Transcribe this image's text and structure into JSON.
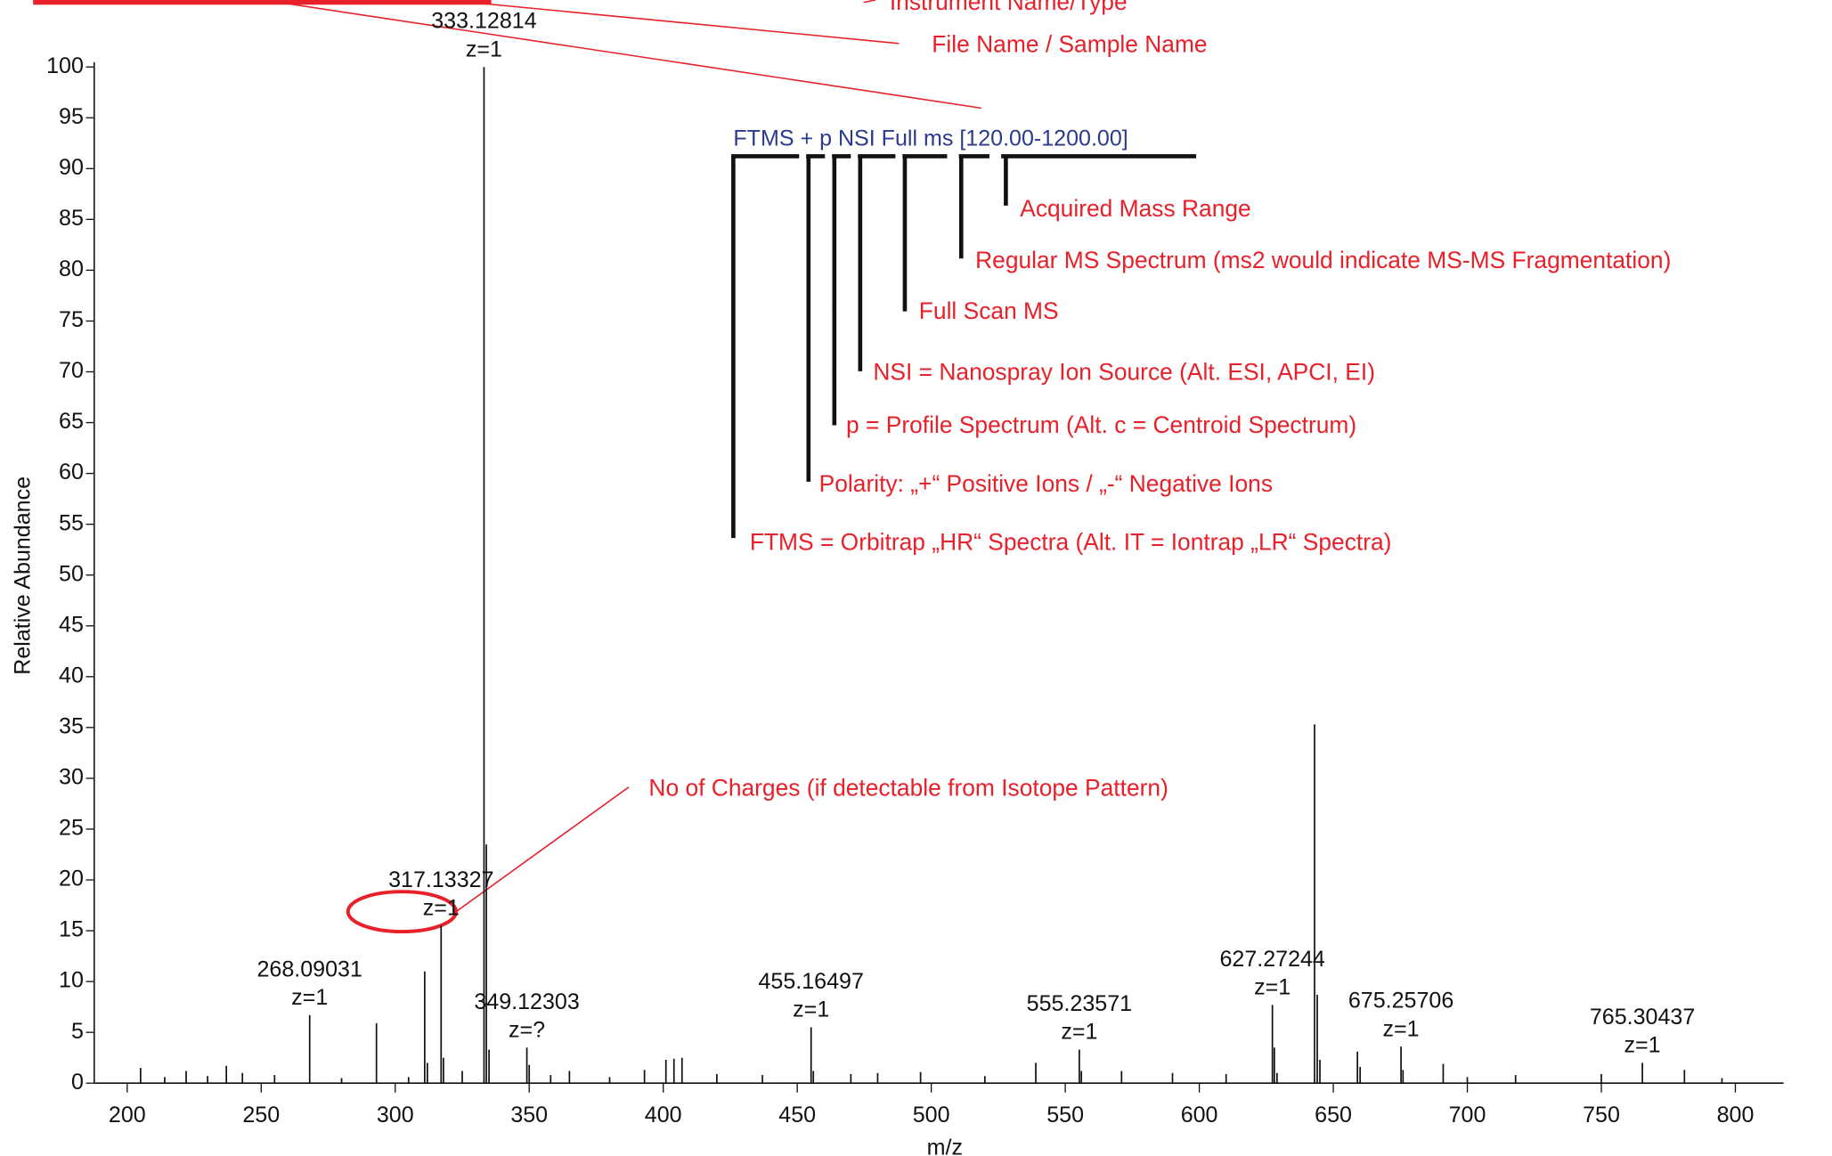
{
  "chart_data": {
    "type": "spectrum",
    "x_label": "m/z",
    "y_label": "Relative Abundance",
    "xlim": [
      187.7,
      818
    ],
    "xticks": [
      200,
      250,
      300,
      350,
      400,
      450,
      500,
      550,
      600,
      650,
      700,
      750,
      800
    ],
    "ylim": [
      0,
      100
    ],
    "yticks": [
      0,
      5,
      10,
      15,
      20,
      25,
      30,
      35,
      40,
      45,
      50,
      55,
      60,
      65,
      70,
      75,
      80,
      85,
      90,
      95,
      100
    ],
    "color": "#111111",
    "x": [
      205,
      214,
      222,
      230,
      237,
      243,
      255,
      268.09031,
      280,
      293,
      305,
      311,
      312,
      317.13327,
      318,
      325,
      333.12814,
      334,
      335,
      349.12303,
      350,
      358,
      365,
      380,
      393,
      401,
      404,
      407,
      420,
      437,
      455.16497,
      456,
      470,
      480,
      496,
      520,
      539,
      555.23571,
      556,
      571,
      590,
      610,
      627.27244,
      628,
      629,
      643,
      644,
      645,
      659,
      660,
      675.25706,
      676,
      691,
      700,
      718,
      750,
      765.30437,
      781,
      795
    ],
    "values": [
      1.5,
      0.6,
      1.2,
      0.7,
      1.7,
      1,
      0.8,
      6.7,
      0.5,
      5.9,
      0.6,
      11,
      2,
      15.5,
      2.5,
      1.2,
      100,
      23.5,
      3.3,
      3.5,
      1.8,
      0.8,
      1.2,
      0.6,
      1.3,
      2.3,
      2.4,
      2.5,
      0.9,
      0.8,
      5.5,
      1.2,
      0.9,
      1,
      1.1,
      0.7,
      2,
      3.3,
      1.2,
      1.2,
      1,
      0.9,
      7.7,
      3.5,
      1,
      35.3,
      8.7,
      2.3,
      3.1,
      1.6,
      3.6,
      1.3,
      1.9,
      0.6,
      0.8,
      0.9,
      2,
      1.3,
      0.5
    ],
    "peak_labels": [
      {
        "x": 268.09031,
        "charge": "z=1"
      },
      {
        "x": 317.13327,
        "charge": "z=1"
      },
      {
        "x": 333.12814,
        "charge": "z=1"
      },
      {
        "x": 349.12303,
        "charge": "z=?"
      },
      {
        "x": 455.16497,
        "charge": "z=1"
      },
      {
        "x": 555.23571,
        "charge": "z=1"
      },
      {
        "x": 627.27244,
        "charge": "z=1"
      },
      {
        "x": 675.25706,
        "charge": "z=1"
      },
      {
        "x": 765.30437,
        "charge": "z=1"
      }
    ],
    "scan_header": "FTMS + p NSI Full ms [120.00-1200.00]",
    "annotations": [
      "Instrument Name/Type",
      "File Name / Sample Name",
      "Acquired Mass Range",
      "Regular MS Spectrum (ms2 would indicate MS-MS Fragmentation)",
      "Full Scan MS",
      "NSI = Nanospray Ion Source (Alt. ESI, APCI, EI)",
      "p = Profile Spectrum (Alt. c = Centroid Spectrum)",
      "Polarity: „+“ Positive Ions / „-“ Negative Ions",
      "FTMS = Orbitrap „HR“ Spectra (Alt. IT = Iontrap „LR“ Spectra)",
      "No of Charges (if detectable from Isotope Pattern)"
    ]
  }
}
